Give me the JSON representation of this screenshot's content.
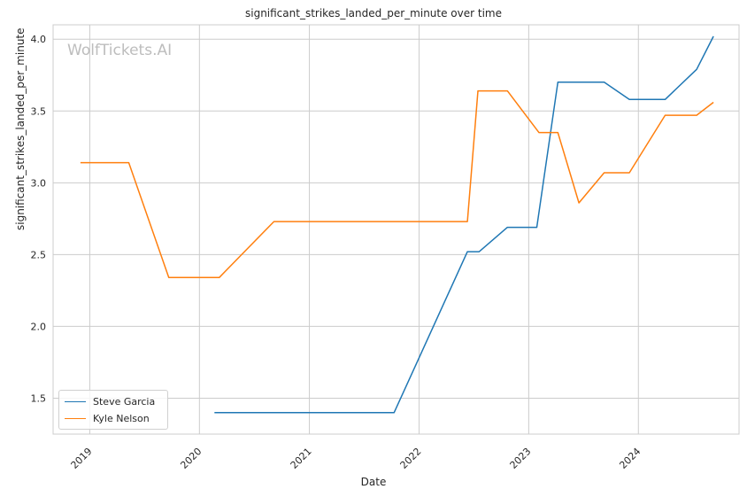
{
  "chart_data": {
    "type": "line",
    "title": "significant_strikes_landed_per_minute over time",
    "xlabel": "Date",
    "ylabel": "significant_strikes_landed_per_minute",
    "watermark": "WolfTickets.AI",
    "xlim": [
      "2018-09-01",
      "2024-12-01"
    ],
    "ylim": [
      1.25,
      4.1
    ],
    "x_ticks": [
      {
        "date": "2019-01-01",
        "label": "2019"
      },
      {
        "date": "2020-01-01",
        "label": "2020"
      },
      {
        "date": "2021-01-01",
        "label": "2021"
      },
      {
        "date": "2022-01-01",
        "label": "2022"
      },
      {
        "date": "2023-01-01",
        "label": "2023"
      },
      {
        "date": "2024-01-01",
        "label": "2024"
      }
    ],
    "y_ticks": [
      {
        "value": 1.5,
        "label": "1.5"
      },
      {
        "value": 2.0,
        "label": "2.0"
      },
      {
        "value": 2.5,
        "label": "2.5"
      },
      {
        "value": 3.0,
        "label": "3.0"
      },
      {
        "value": 3.5,
        "label": "3.5"
      },
      {
        "value": 4.0,
        "label": "4.0"
      }
    ],
    "grid": true,
    "legend_position": "lower-left",
    "series": [
      {
        "name": "Steve Garcia",
        "color": "#1f77b4",
        "points": [
          [
            "2020-02-20",
            1.4
          ],
          [
            "2021-10-10",
            1.4
          ],
          [
            "2022-06-11",
            2.52
          ],
          [
            "2022-07-20",
            2.52
          ],
          [
            "2022-10-22",
            2.69
          ],
          [
            "2023-01-28",
            2.69
          ],
          [
            "2023-04-08",
            3.7
          ],
          [
            "2023-09-09",
            3.7
          ],
          [
            "2023-12-02",
            3.58
          ],
          [
            "2024-03-30",
            3.58
          ],
          [
            "2024-07-13",
            3.79
          ],
          [
            "2024-09-07",
            4.02
          ]
        ]
      },
      {
        "name": "Kyle Nelson",
        "color": "#ff7f0e",
        "points": [
          [
            "2018-12-01",
            3.14
          ],
          [
            "2019-05-11",
            3.14
          ],
          [
            "2019-09-21",
            2.34
          ],
          [
            "2020-03-07",
            2.34
          ],
          [
            "2020-09-05",
            2.73
          ],
          [
            "2022-06-11",
            2.73
          ],
          [
            "2022-07-16",
            3.64
          ],
          [
            "2022-10-22",
            3.64
          ],
          [
            "2023-02-04",
            3.35
          ],
          [
            "2023-04-08",
            3.35
          ],
          [
            "2023-06-17",
            2.86
          ],
          [
            "2023-09-09",
            3.07
          ],
          [
            "2023-12-02",
            3.07
          ],
          [
            "2024-03-30",
            3.47
          ],
          [
            "2024-07-13",
            3.47
          ],
          [
            "2024-09-07",
            3.56
          ]
        ]
      }
    ]
  }
}
